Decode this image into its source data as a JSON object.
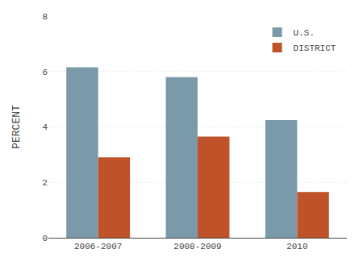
{
  "chart_data": {
    "type": "bar",
    "categories": [
      "2006-2007",
      "2008-2009",
      "2010"
    ],
    "series": [
      {
        "name": "U.S.",
        "color": "#7a9aaa",
        "values": [
          6.15,
          5.8,
          4.25
        ]
      },
      {
        "name": "DISTRICT",
        "color": "#c0522a",
        "values": [
          2.9,
          3.65,
          1.65
        ]
      }
    ],
    "ylabel": "PERCENT",
    "ylim": [
      0,
      8
    ],
    "yticks": [
      0,
      2,
      4,
      6,
      8
    ],
    "grid": true,
    "legend": "upper right"
  }
}
